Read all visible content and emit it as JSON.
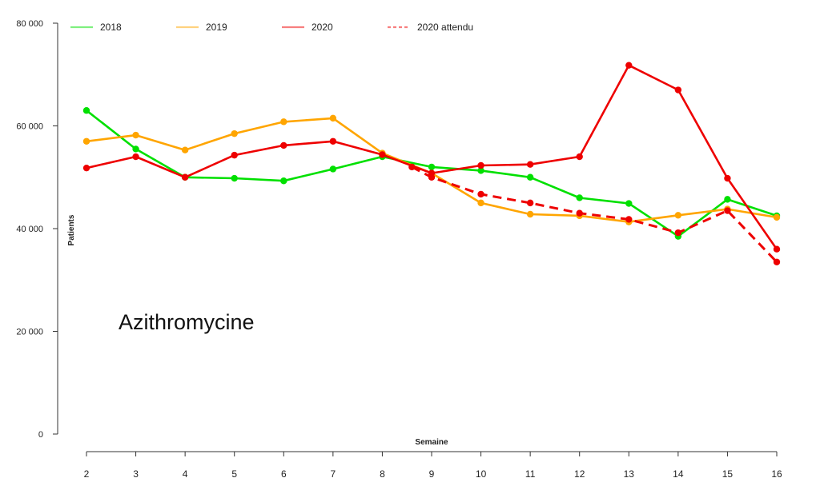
{
  "chart_data": {
    "type": "line",
    "title": "",
    "xlabel": "Semaine",
    "ylabel": "Patients",
    "x": [
      2,
      3,
      4,
      5,
      6,
      7,
      8,
      9,
      10,
      11,
      12,
      13,
      14,
      15,
      16
    ],
    "x_tick_labels": [
      "2",
      "3",
      "4",
      "5",
      "6",
      "7",
      "8",
      "9",
      "10",
      "11",
      "12",
      "13",
      "14",
      "15",
      "16"
    ],
    "ylim": [
      0,
      80000
    ],
    "y_ticks": [
      0,
      20000,
      40000,
      60000,
      80000
    ],
    "y_tick_labels": [
      "0",
      "20 000",
      "40 000",
      "60 000",
      "80 000"
    ],
    "grid": false,
    "legend_position": "top",
    "annotation": "Azithromycine",
    "series": [
      {
        "name": "2018",
        "color": "#00e000",
        "dashed": false,
        "x": [
          2,
          3,
          4,
          5,
          6,
          7,
          8,
          9,
          10,
          11,
          12,
          13,
          14,
          15,
          16
        ],
        "y": [
          63000,
          55500,
          50000,
          49800,
          49300,
          51600,
          54000,
          52000,
          51300,
          50000,
          46000,
          44900,
          38500,
          45700,
          42500
        ]
      },
      {
        "name": "2019",
        "color": "#ffa500",
        "dashed": false,
        "x": [
          2,
          3,
          4,
          5,
          6,
          7,
          8,
          9,
          10,
          11,
          12,
          13,
          14,
          15,
          16
        ],
        "y": [
          57000,
          58200,
          55300,
          58500,
          60800,
          61500,
          54700,
          50800,
          45000,
          42800,
          42500,
          41300,
          42600,
          43800,
          42200
        ]
      },
      {
        "name": "2020",
        "color": "#ee0000",
        "dashed": false,
        "x": [
          2,
          3,
          4,
          5,
          6,
          7,
          8,
          9,
          10,
          11,
          12,
          13,
          14,
          15,
          16
        ],
        "y": [
          51800,
          54000,
          50000,
          54300,
          56200,
          57000,
          54400,
          50800,
          52300,
          52500,
          54000,
          71800,
          67000,
          49800,
          36000
        ]
      },
      {
        "name": "2020 attendu",
        "color": "#ee0000",
        "dashed": true,
        "x": [
          8.6,
          9,
          10,
          11,
          12,
          13,
          14,
          15,
          16
        ],
        "y": [
          52000,
          50000,
          46700,
          45000,
          43000,
          41800,
          39200,
          43500,
          33500
        ]
      }
    ]
  }
}
